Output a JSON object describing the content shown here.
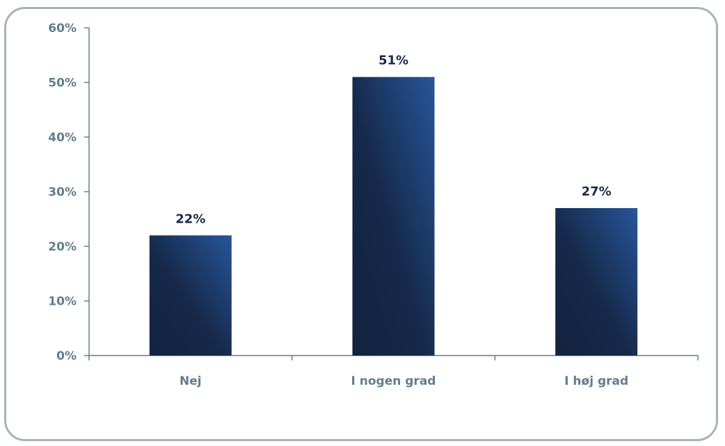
{
  "chart_data": {
    "type": "bar",
    "categories": [
      "Nej",
      "I nogen grad",
      "I høj grad"
    ],
    "values": [
      22,
      51,
      27
    ],
    "value_labels": [
      "22%",
      "51%",
      "27%"
    ],
    "title": "",
    "xlabel": "",
    "ylabel": "",
    "ylim": [
      0,
      60
    ],
    "yticks": [
      0,
      10,
      20,
      30,
      40,
      50,
      60
    ],
    "ytick_labels": [
      "0%",
      "10%",
      "20%",
      "30%",
      "40%",
      "50%",
      "60%"
    ],
    "grid": false,
    "legend": "none",
    "bar_color_dark": "#13233f",
    "bar_color_light": "#27569a",
    "axis_color": "#637d8c",
    "frame_color": "#a7b3b8"
  }
}
